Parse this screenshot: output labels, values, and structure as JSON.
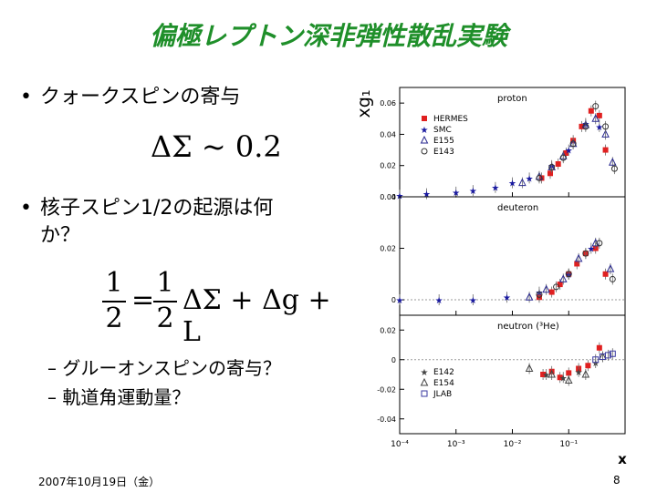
{
  "slide": {
    "title": "偏極レプトン深非弾性散乱実験",
    "bullets": [
      {
        "text": "クォークスピンの寄与"
      },
      {
        "text_line1": "核子スピン1/2の起源は何",
        "text_line2": "か？"
      }
    ],
    "formula1": "ΔΣ ~ 0.2",
    "formula2": {
      "lhs_num": "1",
      "lhs_den": "2",
      "rhs_num": "1",
      "rhs_den": "2",
      "rest": "ΔΣ + Δg + L"
    },
    "sub_bullets": [
      "– グルーオンスピンの寄与？",
      "– 軌道角運動量？"
    ],
    "footer_date": "2007年10月19日（金）",
    "page_number": "8"
  },
  "chart_data": {
    "type": "scatter",
    "xscale": "log",
    "xlim": [
      0.0001,
      1
    ],
    "x_ticks": [
      "10⁻⁴",
      "10⁻³",
      "10⁻²",
      "10⁻¹"
    ],
    "xlabel": "x",
    "ylabel": "xg₁",
    "panels": [
      {
        "label": "proton",
        "ylim": [
          0,
          0.07
        ],
        "y_ticks": [
          "0",
          "0.02",
          "0.04",
          "0.06"
        ],
        "legend": [
          "HERMES",
          "SMC",
          "E155",
          "E143"
        ],
        "series": [
          {
            "name": "HERMES",
            "color": "#e02020",
            "marker": "square",
            "x": [
              0.033,
              0.047,
              0.065,
              0.09,
              0.12,
              0.17,
              0.25,
              0.35,
              0.45
            ],
            "y": [
              0.012,
              0.015,
              0.021,
              0.028,
              0.036,
              0.045,
              0.055,
              0.052,
              0.03
            ]
          },
          {
            "name": "SMC",
            "color": "#1a1aa0",
            "marker": "star",
            "x": [
              0.0001,
              0.0003,
              0.001,
              0.002,
              0.005,
              0.01,
              0.02,
              0.05,
              0.1,
              0.2,
              0.35
            ],
            "y": [
              0.001,
              0.002,
              0.003,
              0.004,
              0.006,
              0.009,
              0.012,
              0.02,
              0.03,
              0.047,
              0.045
            ]
          },
          {
            "name": "E155",
            "color": "#2a2a90",
            "marker": "triangle",
            "x": [
              0.015,
              0.03,
              0.05,
              0.08,
              0.12,
              0.2,
              0.3,
              0.45,
              0.6
            ],
            "y": [
              0.009,
              0.013,
              0.019,
              0.026,
              0.034,
              0.046,
              0.05,
              0.04,
              0.022
            ]
          },
          {
            "name": "E143",
            "color": "#333333",
            "marker": "circle",
            "x": [
              0.03,
              0.05,
              0.08,
              0.12,
              0.2,
              0.3,
              0.45,
              0.65
            ],
            "y": [
              0.012,
              0.019,
              0.025,
              0.034,
              0.045,
              0.058,
              0.045,
              0.018
            ]
          }
        ]
      },
      {
        "label": "deuteron",
        "ylim": [
          -0.006,
          0.04
        ],
        "y_ticks": [
          "0",
          "0.02",
          "0.04"
        ],
        "series": [
          {
            "name": "HERMES",
            "color": "#e02020",
            "marker": "square",
            "x": [
              0.03,
              0.05,
              0.07,
              0.1,
              0.14,
              0.2,
              0.3,
              0.45
            ],
            "y": [
              0.001,
              0.003,
              0.006,
              0.01,
              0.014,
              0.018,
              0.02,
              0.01
            ]
          },
          {
            "name": "SMC",
            "color": "#1a1aa0",
            "marker": "star",
            "x": [
              0.0001,
              0.0005,
              0.002,
              0.008,
              0.03,
              0.1,
              0.25
            ],
            "y": [
              0.0,
              0.0,
              0.0,
              0.001,
              0.003,
              0.01,
              0.02
            ]
          },
          {
            "name": "E155",
            "color": "#2a2a90",
            "marker": "triangle",
            "x": [
              0.02,
              0.04,
              0.08,
              0.15,
              0.3,
              0.55
            ],
            "y": [
              0.001,
              0.004,
              0.008,
              0.016,
              0.022,
              0.012
            ]
          },
          {
            "name": "E143",
            "color": "#333333",
            "marker": "circle",
            "x": [
              0.03,
              0.06,
              0.1,
              0.2,
              0.35,
              0.6
            ],
            "y": [
              0.002,
              0.005,
              0.01,
              0.018,
              0.022,
              0.008
            ]
          }
        ]
      },
      {
        "label": "neutron (³He)",
        "ylim": [
          -0.05,
          0.03
        ],
        "y_ticks": [
          "0.02",
          "0",
          "-0.02",
          "-0.04"
        ],
        "legend": [
          "E142",
          "E154",
          "JLAB"
        ],
        "series": [
          {
            "name": "HERMES",
            "color": "#e02020",
            "marker": "square",
            "x": [
              0.035,
              0.05,
              0.07,
              0.1,
              0.15,
              0.22,
              0.35
            ],
            "y": [
              -0.01,
              -0.008,
              -0.012,
              -0.009,
              -0.006,
              -0.004,
              0.008
            ]
          },
          {
            "name": "E142",
            "color": "#444444",
            "marker": "star",
            "x": [
              0.04,
              0.08,
              0.15,
              0.3
            ],
            "y": [
              -0.01,
              -0.012,
              -0.008,
              -0.002
            ]
          },
          {
            "name": "E154",
            "color": "#444444",
            "marker": "triangle",
            "x": [
              0.02,
              0.05,
              0.1,
              0.2,
              0.4
            ],
            "y": [
              -0.006,
              -0.01,
              -0.014,
              -0.01,
              0.002
            ]
          },
          {
            "name": "JLAB",
            "color": "#3a3aa0",
            "marker": "opensquare",
            "x": [
              0.3,
              0.4,
              0.5,
              0.6
            ],
            "y": [
              0.0,
              0.002,
              0.003,
              0.004
            ]
          }
        ]
      }
    ]
  }
}
